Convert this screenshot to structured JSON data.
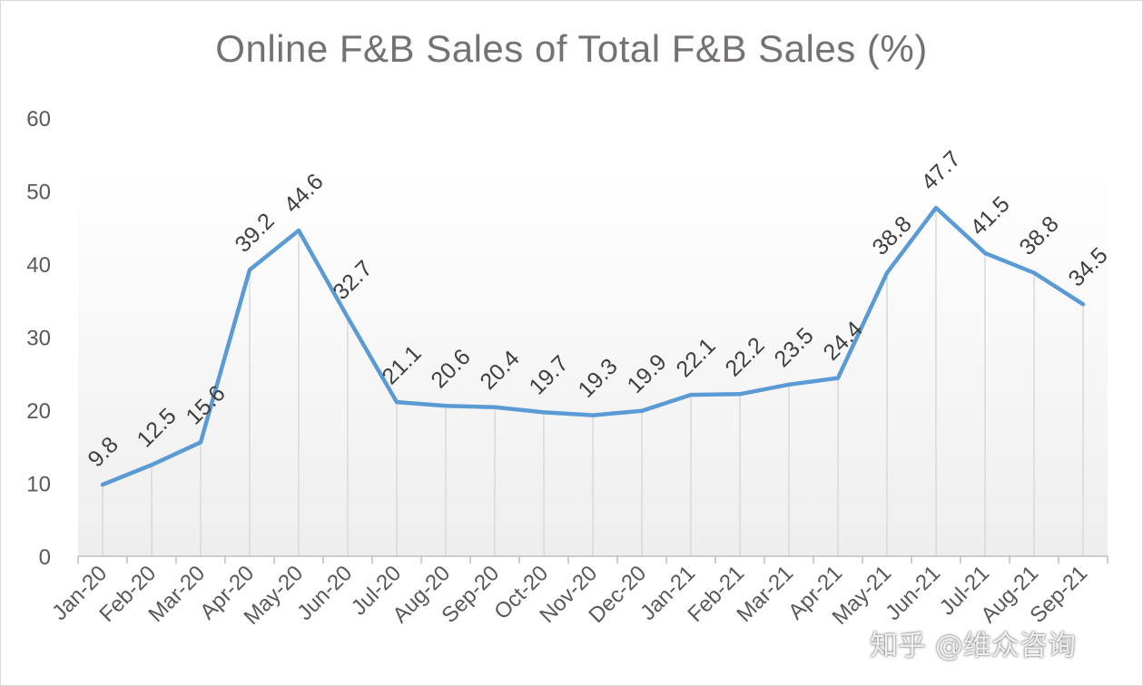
{
  "chart_data": {
    "type": "line",
    "title": "Online F&B Sales of Total F&B Sales (%)",
    "xlabel": "",
    "ylabel": "",
    "ylim": [
      0,
      60
    ],
    "yticks": [
      0,
      10,
      20,
      30,
      40,
      50,
      60
    ],
    "grid": false,
    "drop_lines": true,
    "categories": [
      "Jan-20",
      "Feb-20",
      "Mar-20",
      "Apr-20",
      "May-20",
      "Jun-20",
      "Jul-20",
      "Aug-20",
      "Sep-20",
      "Oct-20",
      "Nov-20",
      "Dec-20",
      "Jan-21",
      "Feb-21",
      "Mar-21",
      "Apr-21",
      "May-21",
      "Jun-21",
      "Jul-21",
      "Aug-21",
      "Sep-21"
    ],
    "series": [
      {
        "color": "#5b9bd5",
        "values": [
          9.8,
          12.5,
          15.6,
          39.2,
          44.6,
          32.7,
          21.1,
          20.6,
          20.4,
          19.7,
          19.3,
          19.9,
          22.1,
          22.2,
          23.5,
          24.4,
          38.8,
          47.7,
          41.5,
          38.8,
          34.5
        ]
      }
    ]
  },
  "watermark": "知乎 @维众咨询"
}
